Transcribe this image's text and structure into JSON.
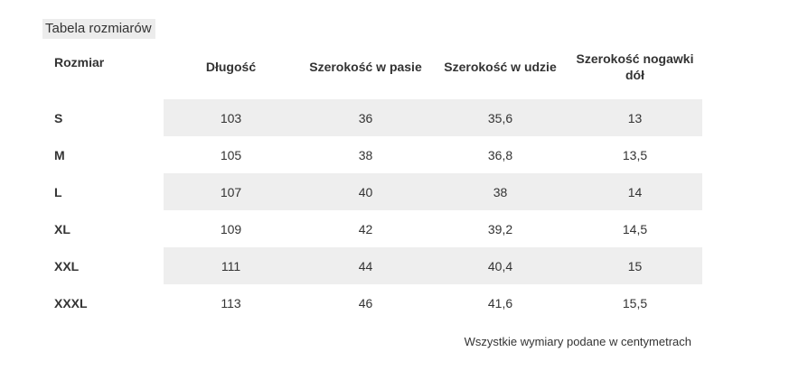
{
  "title": "Tabela rozmiarów",
  "table": {
    "columns": [
      {
        "label": "Rozmiar"
      },
      {
        "label": "Długość"
      },
      {
        "label": "Szerokość w pasie"
      },
      {
        "label": "Szerokość w udzie"
      },
      {
        "label": "Szerokość nogawki dół"
      }
    ],
    "rows": [
      {
        "size": "S",
        "values": [
          "103",
          "36",
          "35,6",
          "13"
        ],
        "striped": true
      },
      {
        "size": "M",
        "values": [
          "105",
          "38",
          "36,8",
          "13,5"
        ],
        "striped": false
      },
      {
        "size": "L",
        "values": [
          "107",
          "40",
          "38",
          "14"
        ],
        "striped": true
      },
      {
        "size": "XL",
        "values": [
          "109",
          "42",
          "39,2",
          "14,5"
        ],
        "striped": false
      },
      {
        "size": "XXL",
        "values": [
          "111",
          "44",
          "40,4",
          "15"
        ],
        "striped": true
      },
      {
        "size": "XXXL",
        "values": [
          "113",
          "46",
          "41,6",
          "15,5"
        ],
        "striped": false
      }
    ]
  },
  "footer_note": "Wszystkie wymiary podane w centymetrach",
  "colors": {
    "stripe": "#eeeeee",
    "title_highlight": "#ececec",
    "text": "#333333"
  }
}
